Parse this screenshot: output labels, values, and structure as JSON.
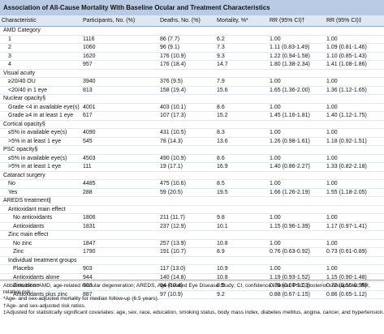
{
  "title": "Association of All-Cause Mortality With Baseline Ocular and Treatment Characteristics",
  "table": {
    "columns": [
      "Characteristic",
      "Participants, No. (%)",
      "Deaths, No. (%)",
      "Mortality, %*",
      "RR (95% CI)†",
      "RR (95% CI)‡"
    ],
    "sections": [
      {
        "title": "AMD Category",
        "rows": [
          [
            "1",
            "1116",
            "86 (7.7)",
            "6.2",
            "1.00",
            "1.00"
          ],
          [
            "2",
            "1060",
            "96 (9.1)",
            "7.3",
            "1.11 (0.83-1.49)",
            "1.09 (0.81-1.46)"
          ],
          [
            "3",
            "1620",
            "176 (10.9)",
            "9.3",
            "1.22 (0.94-1.58)",
            "1.10 (0.85-1.43)"
          ],
          [
            "4",
            "957",
            "176 (18.4)",
            "14.7",
            "1.80 (1.38-2.34)",
            "1.41 (1.08-1.86)"
          ]
        ]
      },
      {
        "title": "Visual acuity",
        "rows": [
          [
            "≥20/40 OU",
            "3940",
            "376 (9.5)",
            "7.9",
            "1.00",
            "1.00"
          ],
          [
            "<20/40 in 1 eye",
            "813",
            "158 (19.4)",
            "15.6",
            "1.65 (1.36-2.00)",
            "1.36 (1.12-1.65)"
          ]
        ]
      },
      {
        "title": "Nuclear opacity§",
        "rows": [
          [
            "Grade <4 in available eye(s)",
            "4001",
            "403 (10.1)",
            "8.6",
            "1.00",
            "1.00"
          ],
          [
            "Grade ≥4 in at least 1 eye",
            "617",
            "107 (17.3)",
            "15.2",
            "1.45 (1.16-1.81)",
            "1.40 (1.12-1.75)"
          ]
        ]
      },
      {
        "title": "Cortical opacity§",
        "rows": [
          [
            "≤5% in available eye(s)",
            "4090",
            "431 (10.5)",
            "8.3",
            "1.00",
            "1.00"
          ],
          [
            ">5% in at least 1 eye",
            "545",
            "78 (14.3)",
            "13.6",
            "1.26 (0.98-1.61)",
            "1.18 (0.92-1.51)"
          ]
        ]
      },
      {
        "title": "PSC opacity§",
        "rows": [
          [
            "≤5% in available eye(s)",
            "4503",
            "490 (10.9)",
            "8.6",
            "1.00",
            "1.00"
          ],
          [
            ">5% in at least 1 eye",
            "111",
            "19 (17.1)",
            "16.9",
            "1.40 (0.86-2.27)",
            "1.33 (0.82-2.18)"
          ]
        ]
      },
      {
        "title": "Cataract surgery",
        "rows": [
          [
            "No",
            "4485",
            "475 (10.6)",
            "8.5",
            "1.00",
            "1.00"
          ],
          [
            "Yes",
            "288",
            "59 (20.5)",
            "19.5",
            "1.66 (1.26-2.19)",
            "1.55 (1.18-2.05)"
          ]
        ]
      },
      {
        "title": "AREDS treatment∥",
        "groups": [
          {
            "title": "Antioxidant main effect",
            "rows": [
              [
                "No antioxidants",
                "1806",
                "211 (11.7)",
                "9.8",
                "1.00",
                "1.00"
              ],
              [
                "Antioxidants",
                "1831",
                "237 (12.9)",
                "10.1",
                "1.15 (0.96-1.39)",
                "1.17 (0.97-1.41)"
              ]
            ]
          },
          {
            "title": "Zinc main effect",
            "rows": [
              [
                "No zinc",
                "1847",
                "257 (13.9)",
                "10.8",
                "1.00",
                "1.00"
              ],
              [
                "Zinc",
                "1790",
                "191 (10.7)",
                "8.9",
                "0.76 (0.63-0.92)",
                "0.73 (0.61-0.89)"
              ]
            ]
          },
          {
            "title": "Individual treatment groups",
            "rows": [
              [
                "Placebo",
                "903",
                "117 (13.0)",
                "10.9",
                "1.00",
                "1.00"
              ],
              [
                "Antioxidants alone",
                "944",
                "140 (14.8)",
                "10.8",
                "1.19 (0.93-1.52)",
                "1.15 (0.90-1.48)"
              ],
              [
                "Zinc alone",
                "903",
                "94 (10.4)",
                "8.5",
                "0.79 (0.60-1.03)",
                "0.72 (0.55-0.95)"
              ],
              [
                "Antioxidants plus zinc",
                "887",
                "97 (10.9)",
                "9.2",
                "0.88 (0.67-1.15)",
                "0.86 (0.65-1.12)"
              ]
            ]
          }
        ]
      }
    ]
  },
  "footnotes": [
    "Abbreviations: AMD, age-related macular degeneration; AREDS, Age-Related Eye Disease Study; CI, confidence interval; PSC, posterior subcapsular; RR, relative risk.",
    "*Age- and sex-adjusted mortality for median follow-up (6.5 years).",
    "†Age- and sex-adjusted risk ratios.",
    "‡Adjusted for statistically significant covariates: age, sex, race, education, smoking status, body mass index, diabetes mellitus, angina, cancer, and hypertension."
  ]
}
